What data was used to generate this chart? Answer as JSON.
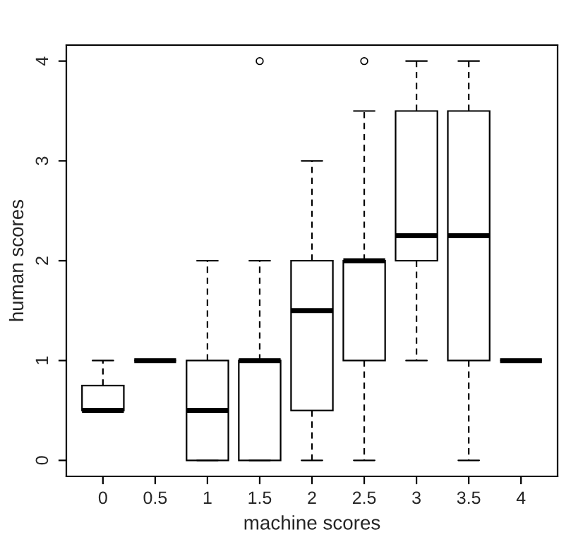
{
  "chart_data": {
    "type": "box",
    "xlabel": "machine scores",
    "ylabel": "human scores",
    "categories": [
      "0",
      "0.5",
      "1",
      "1.5",
      "2",
      "2.5",
      "3",
      "3.5",
      "4"
    ],
    "boxes": [
      {
        "low": 0.5,
        "q1": 0.5,
        "median": 0.5,
        "q3": 0.75,
        "high": 1
      },
      {
        "low": 1,
        "q1": 1,
        "median": 1,
        "q3": 1,
        "high": 1
      },
      {
        "low": 0,
        "q1": 0,
        "median": 0.5,
        "q3": 1,
        "high": 2
      },
      {
        "low": 0,
        "q1": 0,
        "median": 1,
        "q3": 1,
        "high": 2,
        "outliers": [
          4
        ]
      },
      {
        "low": 0,
        "q1": 0.5,
        "median": 1.5,
        "q3": 2,
        "high": 3
      },
      {
        "low": 0,
        "q1": 1,
        "median": 2,
        "q3": 2,
        "high": 3.5,
        "outliers": [
          4
        ]
      },
      {
        "low": 1,
        "q1": 2,
        "median": 2.25,
        "q3": 3.5,
        "high": 4
      },
      {
        "low": 0,
        "q1": 1,
        "median": 2.25,
        "q3": 3.5,
        "high": 4
      },
      {
        "low": 1,
        "q1": 1,
        "median": 1,
        "q3": 1,
        "high": 1
      }
    ],
    "ylim": [
      -0.16,
      4.16
    ],
    "yticks": [
      0,
      1,
      2,
      3,
      4
    ]
  }
}
